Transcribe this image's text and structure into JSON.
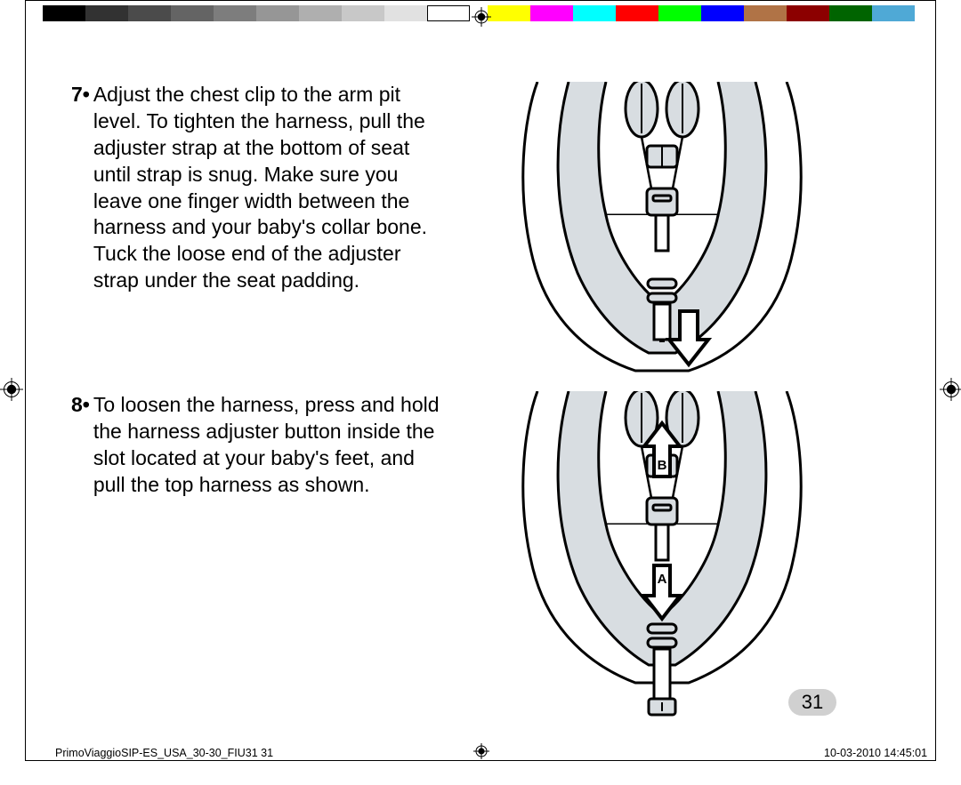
{
  "color_bar_left": [
    "#000000",
    "#323232",
    "#4b4b4b",
    "#646464",
    "#7d7d7d",
    "#969696",
    "#afafaf",
    "#c8c8c8",
    "#e1e1e1",
    "#ffffff"
  ],
  "color_bar_right": [
    "#ffff00",
    "#ff00ff",
    "#00ffff",
    "#ff0000",
    "#00ff00",
    "#0000ff",
    "#b07346",
    "#8c0000",
    "#006400",
    "#4fa9d6"
  ],
  "color_bar_swatch_width": 48,
  "instructions": [
    {
      "num": "7•",
      "text": "Adjust the chest clip to the arm pit level. To tighten the harness, pull the adjuster strap at the bottom of seat until strap is snug. Make sure you leave one finger width between the harness and your baby's collar bone. Tuck the loose end of the adjuster strap under the seat padding."
    },
    {
      "num": "8•",
      "text": "To loosen the harness, press and hold the harness adjuster button inside the slot located at your baby's feet, and pull the top harness as shown."
    }
  ],
  "diagrams": {
    "fill_color": "#d8dde1",
    "stroke_color": "#000000",
    "stroke_width": 3,
    "arrow_label_B": "B",
    "arrow_label_A": "A"
  },
  "page_number": "31",
  "footer": {
    "left": "PrimoViaggioSIP-ES_USA_30-30_FIU31   31",
    "right": "10-03-2010   14:45:01"
  },
  "typography": {
    "body_fontsize": 23,
    "footer_fontsize": 12.5,
    "page_number_fontsize": 22
  }
}
